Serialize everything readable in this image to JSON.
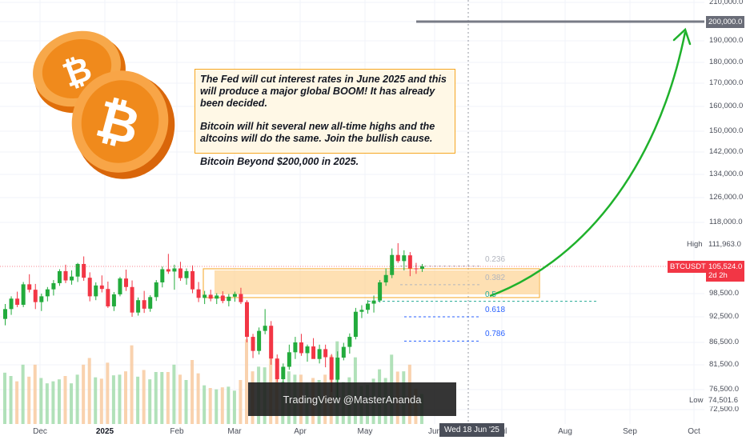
{
  "chart_data": {
    "type": "candlestick",
    "symbol": "BTCUSDT",
    "ylim": [
      72000,
      212000
    ],
    "x_ticks": [
      "Dec",
      "2025",
      "Feb",
      "Mar",
      "Apr",
      "May",
      "Jun",
      "Jul",
      "Aug",
      "Sep",
      "Oct"
    ],
    "y_ticks": [
      "210,000.0",
      "200,000.0",
      "190,000.0",
      "180,000.0",
      "170,000.0",
      "160,000.0",
      "150,000.0",
      "142,000.0",
      "134,000.0",
      "126,000.0",
      "118,000.0",
      "98,500.0",
      "92,500.0",
      "86,500.0",
      "81,500.0",
      "76,500.0",
      "72,500.0"
    ],
    "current_price": "105,524.0",
    "current_price_sub": "2d 2h",
    "high": {
      "label": "High",
      "value": "111,963.0"
    },
    "low": {
      "label": "Low",
      "value": "74,501.6"
    },
    "target": {
      "value": "200,000.0",
      "price": 200000
    },
    "cursor_date": "Wed 18 Jun '25",
    "fib_levels": [
      {
        "label": "0.236",
        "price": 105600,
        "color": "#b2b5be"
      },
      {
        "label": "0.382",
        "price": 100800,
        "color": "#b2b5be"
      },
      {
        "label": "0.5",
        "price": 96500,
        "color": "#22ab94"
      },
      {
        "label": "0.618",
        "price": 92500,
        "color": "#2962ff"
      },
      {
        "label": "0.786",
        "price": 86800,
        "color": "#2962ff"
      }
    ],
    "support_zone": [
      98300,
      104500
    ],
    "candles": [
      [
        92000,
        95800,
        90500,
        94500
      ],
      [
        94500,
        97800,
        93000,
        97200
      ],
      [
        97200,
        99000,
        95000,
        95600
      ],
      [
        95600,
        101500,
        95000,
        100900
      ],
      [
        100900,
        103500,
        98800,
        99500
      ],
      [
        99500,
        101000,
        94500,
        96300
      ],
      [
        96300,
        98500,
        94000,
        97800
      ],
      [
        97800,
        100200,
        96500,
        99600
      ],
      [
        99600,
        102000,
        98000,
        101200
      ],
      [
        101200,
        104800,
        100500,
        104300
      ],
      [
        104300,
        106000,
        101200,
        101900
      ],
      [
        101900,
        104500,
        100800,
        102900
      ],
      [
        102900,
        106500,
        101500,
        106200
      ],
      [
        106200,
        108300,
        101800,
        102600
      ],
      [
        102600,
        104000,
        96500,
        97800
      ],
      [
        97800,
        101400,
        96800,
        100600
      ],
      [
        100600,
        103200,
        98800,
        99700
      ],
      [
        99700,
        101600,
        94800,
        95200
      ],
      [
        95200,
        98900,
        94000,
        98300
      ],
      [
        98300,
        102800,
        97800,
        102400
      ],
      [
        102400,
        104700,
        99200,
        100200
      ],
      [
        100200,
        101900,
        92500,
        93600
      ],
      [
        93600,
        97500,
        92800,
        96800
      ],
      [
        96800,
        99200,
        93500,
        94600
      ],
      [
        94600,
        98100,
        93800,
        97600
      ],
      [
        97600,
        102000,
        96600,
        101400
      ],
      [
        101400,
        105500,
        100100,
        104800
      ],
      [
        104800,
        109000,
        103600,
        104200
      ],
      [
        104200,
        106000,
        99500,
        105000
      ],
      [
        105000,
        106800,
        101800,
        102500
      ],
      [
        102500,
        105000,
        100800,
        104300
      ],
      [
        104300,
        105800,
        98600,
        99600
      ],
      [
        99600,
        101500,
        96300,
        97400
      ],
      [
        97400,
        99200,
        95800,
        98200
      ],
      [
        98200,
        99500,
        96500,
        97200
      ],
      [
        97200,
        98600,
        95800,
        98000
      ],
      [
        98000,
        99100,
        96000,
        96600
      ],
      [
        96600,
        98400,
        95200,
        97700
      ],
      [
        97700,
        99000,
        96400,
        98400
      ],
      [
        98400,
        100000,
        95800,
        96300
      ],
      [
        96300,
        96800,
        86500,
        87800
      ],
      [
        87800,
        88500,
        83000,
        84600
      ],
      [
        84600,
        90000,
        83800,
        89200
      ],
      [
        89200,
        94500,
        88400,
        90400
      ],
      [
        90400,
        91500,
        81500,
        82900
      ],
      [
        82900,
        83800,
        78000,
        78600
      ],
      [
        78600,
        81800,
        77800,
        81100
      ],
      [
        81100,
        86000,
        80500,
        84300
      ],
      [
        84300,
        87800,
        82800,
        86500
      ],
      [
        86500,
        88500,
        83500,
        84100
      ],
      [
        84100,
        86000,
        82200,
        85600
      ],
      [
        85600,
        87500,
        83000,
        82800
      ],
      [
        82800,
        86000,
        81800,
        85000
      ],
      [
        85000,
        86000,
        81000,
        83200
      ],
      [
        83200,
        83900,
        76000,
        78500
      ],
      [
        78500,
        84500,
        74500,
        83100
      ],
      [
        83100,
        86400,
        82500,
        85500
      ],
      [
        85500,
        88600,
        84000,
        87800
      ],
      [
        87800,
        94800,
        87200,
        93800
      ],
      [
        93800,
        95500,
        92200,
        94300
      ],
      [
        94300,
        96800,
        93300,
        95900
      ],
      [
        95900,
        98000,
        93600,
        96700
      ],
      [
        96700,
        102000,
        96200,
        101400
      ],
      [
        101400,
        105000,
        100500,
        103300
      ],
      [
        103300,
        110500,
        102500,
        108700
      ],
      [
        108700,
        111963,
        106500,
        107000
      ],
      [
        107000,
        110000,
        104500,
        108600
      ],
      [
        108600,
        109500,
        103000,
        105000
      ],
      [
        105000,
        106500,
        103600,
        104900
      ],
      [
        104900,
        106200,
        104100,
        105524
      ]
    ]
  },
  "annotation": {
    "lines": [
      "The Fed will cut interest rates in June 2025 and this will produce a major global BOOM! It has already been decided.",
      "Bitcoin will hit several new all-time highs and the altcoins will do the same. Join the bullish cause.",
      "Bitcoin Beyond $200,000 in 2025."
    ]
  },
  "watermark": "TradingView @MasterAnanda",
  "colors": {
    "up": "#22ab3c",
    "down": "#f23645",
    "vol_up": "#9ed9a8",
    "vol_down": "#f7c79a",
    "arrow": "#1fb12b",
    "zone_fill": "#fdd59a",
    "zone_border": "#f5a623",
    "coin": "#f08a1c"
  },
  "icons": {
    "coin": "bitcoin-coin-icon"
  }
}
